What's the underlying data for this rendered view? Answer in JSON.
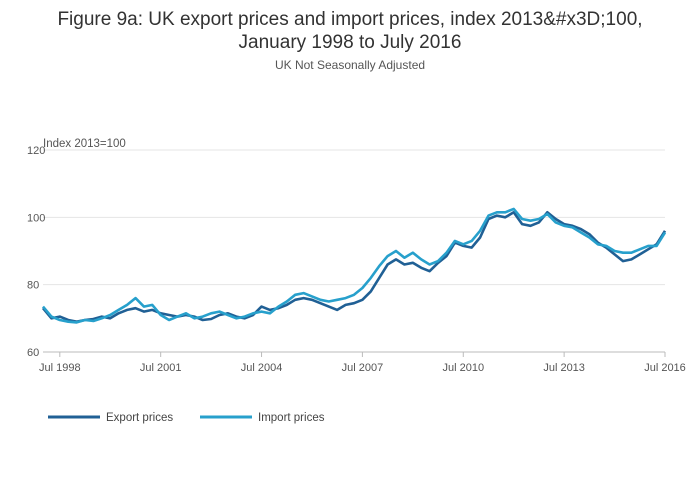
{
  "chart_data": {
    "type": "line",
    "title_line1": "Figure 9a: UK export prices and import prices, index 2013&#x3D;100,",
    "title_line2": "January 1998 to July 2016",
    "subtitle": "UK Not Seasonally Adjusted",
    "ylabel": "Index 2013=100",
    "ylim": [
      60,
      120
    ],
    "yticks": [
      60,
      80,
      100,
      120
    ],
    "xlim": [
      "1998-01",
      "2016-07"
    ],
    "xticks": [
      "Jul 1998",
      "Jul 2001",
      "Jul 2004",
      "Jul 2007",
      "Jul 2010",
      "Jul 2013",
      "Jul 2016"
    ],
    "grid": true,
    "legend_position": "bottom-left",
    "series": [
      {
        "name": "Export prices",
        "color": "#206095",
        "points": [
          [
            "1998-01",
            73.0
          ],
          [
            "1998-04",
            70.0
          ],
          [
            "1998-07",
            70.5
          ],
          [
            "1998-10",
            69.5
          ],
          [
            "1999-01",
            69.0
          ],
          [
            "1999-04",
            69.5
          ],
          [
            "1999-07",
            69.8
          ],
          [
            "1999-10",
            70.5
          ],
          [
            "2000-01",
            70.0
          ],
          [
            "2000-04",
            71.5
          ],
          [
            "2000-07",
            72.5
          ],
          [
            "2000-10",
            73.0
          ],
          [
            "2001-01",
            72.0
          ],
          [
            "2001-04",
            72.5
          ],
          [
            "2001-07",
            71.5
          ],
          [
            "2001-10",
            71.0
          ],
          [
            "2002-01",
            70.5
          ],
          [
            "2002-04",
            71.0
          ],
          [
            "2002-07",
            70.5
          ],
          [
            "2002-10",
            69.5
          ],
          [
            "2003-01",
            69.8
          ],
          [
            "2003-04",
            71.0
          ],
          [
            "2003-07",
            71.5
          ],
          [
            "2003-10",
            70.5
          ],
          [
            "2004-01",
            70.0
          ],
          [
            "2004-04",
            71.0
          ],
          [
            "2004-07",
            73.5
          ],
          [
            "2004-10",
            72.5
          ],
          [
            "2005-01",
            73.0
          ],
          [
            "2005-04",
            74.0
          ],
          [
            "2005-07",
            75.5
          ],
          [
            "2005-10",
            76.0
          ],
          [
            "2006-01",
            75.5
          ],
          [
            "2006-04",
            74.5
          ],
          [
            "2006-07",
            73.5
          ],
          [
            "2006-10",
            72.5
          ],
          [
            "2007-01",
            74.0
          ],
          [
            "2007-04",
            74.5
          ],
          [
            "2007-07",
            75.5
          ],
          [
            "2007-10",
            78.0
          ],
          [
            "2008-01",
            82.0
          ],
          [
            "2008-04",
            86.0
          ],
          [
            "2008-07",
            87.5
          ],
          [
            "2008-10",
            86.0
          ],
          [
            "2009-01",
            86.5
          ],
          [
            "2009-04",
            85.0
          ],
          [
            "2009-07",
            84.0
          ],
          [
            "2009-10",
            86.5
          ],
          [
            "2010-01",
            88.5
          ],
          [
            "2010-04",
            92.5
          ],
          [
            "2010-07",
            91.5
          ],
          [
            "2010-10",
            91.0
          ],
          [
            "2011-01",
            94.0
          ],
          [
            "2011-04",
            99.5
          ],
          [
            "2011-07",
            100.5
          ],
          [
            "2011-10",
            100.0
          ],
          [
            "2012-01",
            101.5
          ],
          [
            "2012-04",
            98.0
          ],
          [
            "2012-07",
            97.5
          ],
          [
            "2012-10",
            98.5
          ],
          [
            "2013-01",
            101.5
          ],
          [
            "2013-04",
            99.5
          ],
          [
            "2013-07",
            98.0
          ],
          [
            "2013-10",
            97.5
          ],
          [
            "2014-01",
            96.5
          ],
          [
            "2014-04",
            95.0
          ],
          [
            "2014-07",
            92.5
          ],
          [
            "2014-10",
            91.0
          ],
          [
            "2015-01",
            89.0
          ],
          [
            "2015-04",
            87.0
          ],
          [
            "2015-07",
            87.5
          ],
          [
            "2015-10",
            89.0
          ],
          [
            "2016-01",
            90.5
          ],
          [
            "2016-04",
            92.0
          ],
          [
            "2016-07",
            96.0
          ]
        ]
      },
      {
        "name": "Import prices",
        "color": "#27a0cc",
        "points": [
          [
            "1998-01",
            73.5
          ],
          [
            "1998-04",
            70.5
          ],
          [
            "1998-07",
            69.5
          ],
          [
            "1998-10",
            69.0
          ],
          [
            "1999-01",
            68.8
          ],
          [
            "1999-04",
            69.5
          ],
          [
            "1999-07",
            69.2
          ],
          [
            "1999-10",
            70.0
          ],
          [
            "2000-01",
            71.0
          ],
          [
            "2000-04",
            72.5
          ],
          [
            "2000-07",
            74.0
          ],
          [
            "2000-10",
            76.0
          ],
          [
            "2001-01",
            73.5
          ],
          [
            "2001-04",
            74.0
          ],
          [
            "2001-07",
            71.0
          ],
          [
            "2001-10",
            69.5
          ],
          [
            "2002-01",
            70.5
          ],
          [
            "2002-04",
            71.5
          ],
          [
            "2002-07",
            70.0
          ],
          [
            "2002-10",
            70.5
          ],
          [
            "2003-01",
            71.5
          ],
          [
            "2003-04",
            72.0
          ],
          [
            "2003-07",
            71.0
          ],
          [
            "2003-10",
            70.0
          ],
          [
            "2004-01",
            70.5
          ],
          [
            "2004-04",
            71.5
          ],
          [
            "2004-07",
            72.0
          ],
          [
            "2004-10",
            71.5
          ],
          [
            "2005-01",
            73.5
          ],
          [
            "2005-04",
            75.0
          ],
          [
            "2005-07",
            77.0
          ],
          [
            "2005-10",
            77.5
          ],
          [
            "2006-01",
            76.5
          ],
          [
            "2006-04",
            75.5
          ],
          [
            "2006-07",
            75.0
          ],
          [
            "2006-10",
            75.5
          ],
          [
            "2007-01",
            76.0
          ],
          [
            "2007-04",
            77.0
          ],
          [
            "2007-07",
            79.0
          ],
          [
            "2007-10",
            82.0
          ],
          [
            "2008-01",
            85.5
          ],
          [
            "2008-04",
            88.5
          ],
          [
            "2008-07",
            90.0
          ],
          [
            "2008-10",
            88.0
          ],
          [
            "2009-01",
            89.5
          ],
          [
            "2009-04",
            87.5
          ],
          [
            "2009-07",
            86.0
          ],
          [
            "2009-10",
            87.0
          ],
          [
            "2010-01",
            89.5
          ],
          [
            "2010-04",
            93.0
          ],
          [
            "2010-07",
            92.0
          ],
          [
            "2010-10",
            93.0
          ],
          [
            "2011-01",
            96.0
          ],
          [
            "2011-04",
            100.5
          ],
          [
            "2011-07",
            101.5
          ],
          [
            "2011-10",
            101.5
          ],
          [
            "2012-01",
            102.5
          ],
          [
            "2012-04",
            99.5
          ],
          [
            "2012-07",
            99.0
          ],
          [
            "2012-10",
            99.5
          ],
          [
            "2013-01",
            101.0
          ],
          [
            "2013-04",
            98.5
          ],
          [
            "2013-07",
            97.5
          ],
          [
            "2013-10",
            97.0
          ],
          [
            "2014-01",
            95.5
          ],
          [
            "2014-04",
            94.0
          ],
          [
            "2014-07",
            92.0
          ],
          [
            "2014-10",
            91.5
          ],
          [
            "2015-01",
            90.0
          ],
          [
            "2015-04",
            89.5
          ],
          [
            "2015-07",
            89.5
          ],
          [
            "2015-10",
            90.5
          ],
          [
            "2016-01",
            91.5
          ],
          [
            "2016-04",
            91.5
          ],
          [
            "2016-07",
            95.5
          ]
        ]
      }
    ]
  }
}
